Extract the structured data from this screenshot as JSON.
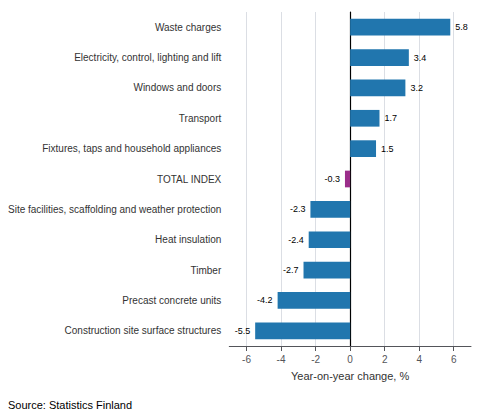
{
  "chart_data": {
    "type": "bar",
    "orientation": "horizontal",
    "categories": [
      "Construction site surface structures",
      "Precast concrete units",
      "Timber",
      "Heat insulation",
      "Site facilities, scaffolding and weather protection",
      "TOTAL INDEX",
      "Fixtures, taps and household appliances",
      "Transport",
      "Windows and doors",
      "Electricity, control, lighting and lift",
      "Waste charges"
    ],
    "values": [
      -5.5,
      -4.2,
      -2.7,
      -2.4,
      -2.3,
      -0.3,
      1.5,
      1.7,
      3.2,
      3.4,
      5.8
    ],
    "colors": [
      "#2176ae",
      "#2176ae",
      "#2176ae",
      "#2176ae",
      "#2176ae",
      "#9b2d8a",
      "#2176ae",
      "#2176ae",
      "#2176ae",
      "#2176ae",
      "#2176ae"
    ],
    "xlabel": "Year-on-year change, %",
    "xlim": [
      -7,
      7
    ],
    "xticks": [
      -6,
      -4,
      -2,
      0,
      2,
      4,
      6
    ],
    "grid": true,
    "data_labels": true,
    "annotations": [
      "Source: Statistics Finland"
    ]
  }
}
